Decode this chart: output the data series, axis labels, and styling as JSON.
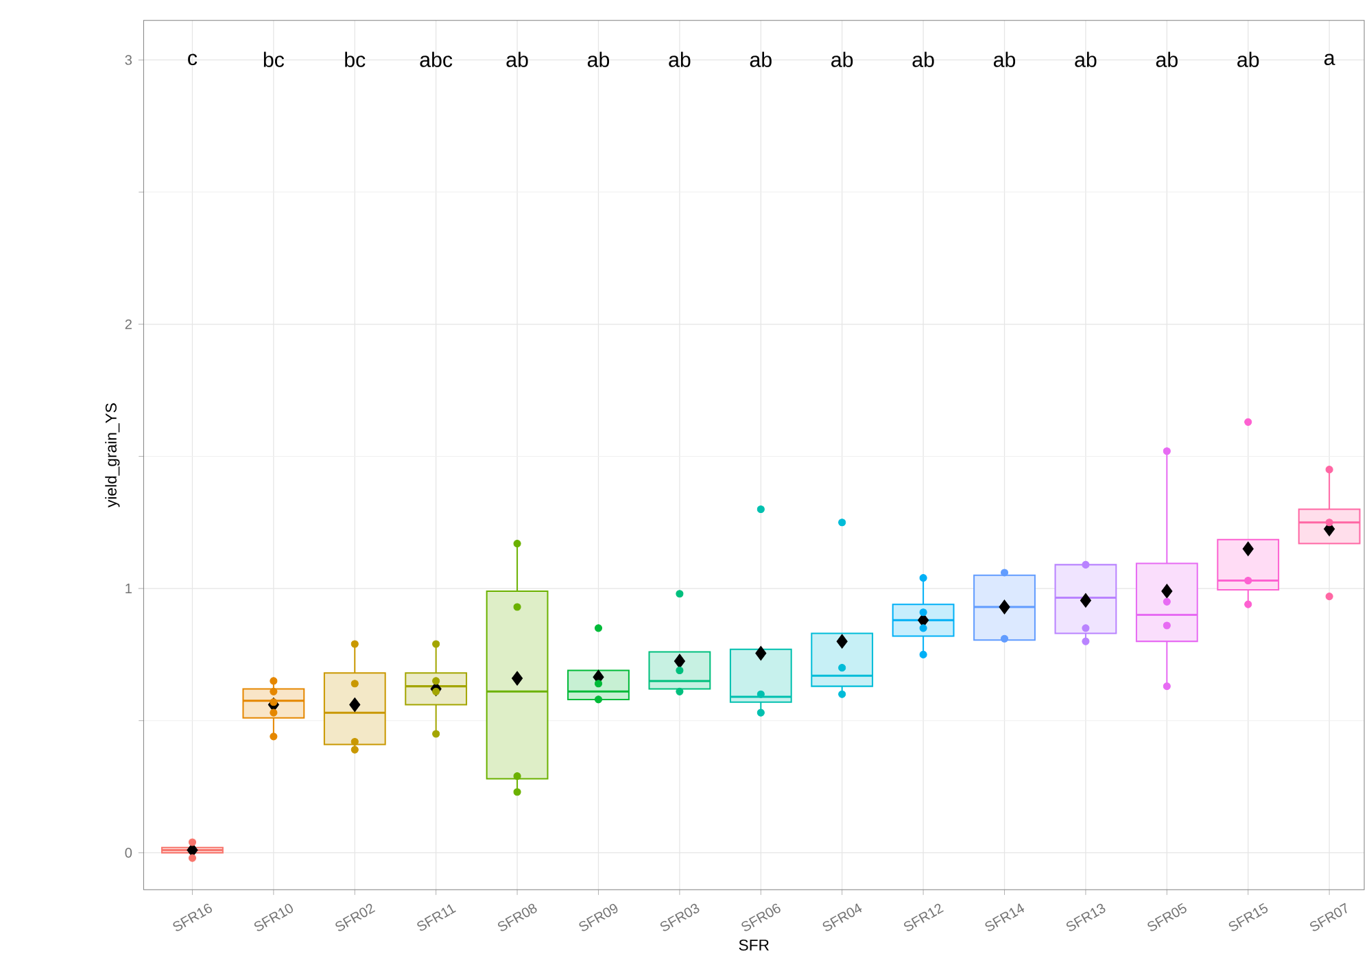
{
  "chart_data": {
    "type": "box",
    "xlabel": "SFR",
    "ylabel": "yield_grain_YS",
    "grid": true,
    "categories": [
      "SFR16",
      "SFR10",
      "SFR02",
      "SFR11",
      "SFR08",
      "SFR09",
      "SFR03",
      "SFR06",
      "SFR04",
      "SFR12",
      "SFR14",
      "SFR13",
      "SFR05",
      "SFR15",
      "SFR07"
    ],
    "colors": [
      "#F8766D",
      "#E58700",
      "#C99800",
      "#A3A500",
      "#6BB100",
      "#00BA38",
      "#00BF7D",
      "#00C0AF",
      "#00BCD8",
      "#00B0F6",
      "#619CFF",
      "#B983FF",
      "#E76BF3",
      "#FD61D1",
      "#FF67A4"
    ],
    "boxes": [
      {
        "low": -0.01,
        "q1": 0.0,
        "median": 0.01,
        "q3": 0.02,
        "high": 0.04,
        "mean": 0.01
      },
      {
        "low": 0.44,
        "q1": 0.51,
        "median": 0.575,
        "q3": 0.62,
        "high": 0.65,
        "mean": 0.56
      },
      {
        "low": 0.39,
        "q1": 0.41,
        "median": 0.53,
        "q3": 0.68,
        "high": 0.79,
        "mean": 0.56
      },
      {
        "low": 0.45,
        "q1": 0.56,
        "median": 0.63,
        "q3": 0.68,
        "high": 0.79,
        "mean": 0.62
      },
      {
        "low": 0.23,
        "q1": 0.28,
        "median": 0.61,
        "q3": 0.99,
        "high": 1.17,
        "mean": 0.66
      },
      {
        "low": 0.58,
        "q1": 0.58,
        "median": 0.61,
        "q3": 0.69,
        "high": 0.69,
        "mean": 0.665
      },
      {
        "low": 0.61,
        "q1": 0.62,
        "median": 0.65,
        "q3": 0.76,
        "high": 0.76,
        "mean": 0.725
      },
      {
        "low": 0.53,
        "q1": 0.57,
        "median": 0.59,
        "q3": 0.77,
        "high": 0.77,
        "mean": 0.755
      },
      {
        "low": 0.6,
        "q1": 0.63,
        "median": 0.67,
        "q3": 0.83,
        "high": 0.83,
        "mean": 0.8
      },
      {
        "low": 0.75,
        "q1": 0.82,
        "median": 0.88,
        "q3": 0.94,
        "high": 1.04,
        "mean": 0.88
      },
      {
        "low": 0.81,
        "q1": 0.805,
        "median": 0.93,
        "q3": 1.05,
        "high": 1.06,
        "mean": 0.93
      },
      {
        "low": 0.8,
        "q1": 0.83,
        "median": 0.965,
        "q3": 1.09,
        "high": 1.09,
        "mean": 0.955
      },
      {
        "low": 0.63,
        "q1": 0.8,
        "median": 0.9,
        "q3": 1.095,
        "high": 1.52,
        "mean": 0.99
      },
      {
        "low": 0.94,
        "q1": 0.995,
        "median": 1.03,
        "q3": 1.185,
        "high": 1.185,
        "mean": 1.15
      },
      {
        "low": 1.17,
        "q1": 1.17,
        "median": 1.25,
        "q3": 1.3,
        "high": 1.45,
        "mean": 1.225
      }
    ],
    "series": [
      {
        "type": "scatter",
        "marker": "circle",
        "x": [
          "SFR16",
          "SFR16",
          "SFR16",
          "SFR10",
          "SFR10",
          "SFR10",
          "SFR10",
          "SFR10",
          "SFR02",
          "SFR02",
          "SFR02",
          "SFR02",
          "SFR11",
          "SFR11",
          "SFR11",
          "SFR11",
          "SFR08",
          "SFR08",
          "SFR08",
          "SFR08",
          "SFR09",
          "SFR09",
          "SFR09",
          "SFR03",
          "SFR03",
          "SFR03",
          "SFR06",
          "SFR06",
          "SFR06",
          "SFR04",
          "SFR04",
          "SFR04",
          "SFR12",
          "SFR12",
          "SFR12",
          "SFR12",
          "SFR14",
          "SFR14",
          "SFR14",
          "SFR13",
          "SFR13",
          "SFR13",
          "SFR13",
          "SFR05",
          "SFR05",
          "SFR05",
          "SFR05",
          "SFR15",
          "SFR15",
          "SFR15",
          "SFR07",
          "SFR07",
          "SFR07"
        ],
        "colors": [
          "#F8766D",
          "#F8766D",
          "#F8766D",
          "#E58700",
          "#E58700",
          "#E58700",
          "#E58700",
          "#E58700",
          "#C99800",
          "#C99800",
          "#C99800",
          "#C99800",
          "#A3A500",
          "#A3A500",
          "#A3A500",
          "#A3A500",
          "#6BB100",
          "#6BB100",
          "#6BB100",
          "#6BB100",
          "#00BA38",
          "#00BA38",
          "#00BA38",
          "#00BF7D",
          "#00BF7D",
          "#00BF7D",
          "#00C0AF",
          "#00C0AF",
          "#00C0AF",
          "#00BCD8",
          "#00BCD8",
          "#00BCD8",
          "#00B0F6",
          "#00B0F6",
          "#00B0F6",
          "#00B0F6",
          "#619CFF",
          "#619CFF",
          "#619CFF",
          "#B983FF",
          "#B983FF",
          "#B983FF",
          "#B983FF",
          "#E76BF3",
          "#E76BF3",
          "#E76BF3",
          "#E76BF3",
          "#FD61D1",
          "#FD61D1",
          "#FD61D1",
          "#FF67A4",
          "#FF67A4",
          "#FF67A4"
        ],
        "values": [
          -0.02,
          null,
          0.04,
          0.65,
          0.61,
          0.57,
          0.53,
          0.44,
          0.79,
          0.64,
          0.42,
          0.39,
          0.79,
          0.65,
          0.61,
          0.45,
          1.17,
          0.93,
          0.29,
          0.23,
          0.85,
          0.64,
          0.58,
          0.98,
          0.69,
          0.61,
          1.3,
          0.6,
          0.53,
          1.25,
          0.7,
          0.6,
          1.04,
          0.91,
          0.85,
          0.75,
          1.06,
          0.81,
          null,
          1.09,
          null,
          0.85,
          0.8,
          1.52,
          0.95,
          0.86,
          0.63,
          1.63,
          1.03,
          0.94,
          1.45,
          1.25,
          0.97
        ]
      }
    ],
    "ylim": [
      -0.14,
      3.15
    ],
    "yticks": [
      0,
      1,
      2,
      3
    ],
    "annotations": [
      "c",
      "bc",
      "bc",
      "abc",
      "ab",
      "ab",
      "ab",
      "ab",
      "ab",
      "ab",
      "ab",
      "ab",
      "ab",
      "ab",
      "a"
    ]
  }
}
